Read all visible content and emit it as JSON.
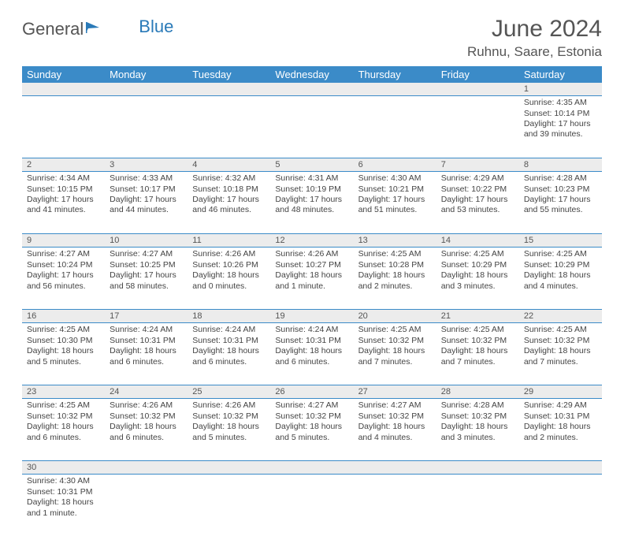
{
  "logo": {
    "general": "General",
    "blue": "Blue"
  },
  "title": "June 2024",
  "location": "Ruhnu, Saare, Estonia",
  "colors": {
    "header_bg": "#3b8bc8",
    "header_fg": "#ffffff",
    "daynum_bg": "#ececec",
    "border": "#3b8bc8",
    "text": "#444444",
    "title": "#555555"
  },
  "day_headers": [
    "Sunday",
    "Monday",
    "Tuesday",
    "Wednesday",
    "Thursday",
    "Friday",
    "Saturday"
  ],
  "weeks": [
    [
      null,
      null,
      null,
      null,
      null,
      null,
      {
        "n": "1",
        "sr": "Sunrise: 4:35 AM",
        "ss": "Sunset: 10:14 PM",
        "dl": "Daylight: 17 hours and 39 minutes."
      }
    ],
    [
      {
        "n": "2",
        "sr": "Sunrise: 4:34 AM",
        "ss": "Sunset: 10:15 PM",
        "dl": "Daylight: 17 hours and 41 minutes."
      },
      {
        "n": "3",
        "sr": "Sunrise: 4:33 AM",
        "ss": "Sunset: 10:17 PM",
        "dl": "Daylight: 17 hours and 44 minutes."
      },
      {
        "n": "4",
        "sr": "Sunrise: 4:32 AM",
        "ss": "Sunset: 10:18 PM",
        "dl": "Daylight: 17 hours and 46 minutes."
      },
      {
        "n": "5",
        "sr": "Sunrise: 4:31 AM",
        "ss": "Sunset: 10:19 PM",
        "dl": "Daylight: 17 hours and 48 minutes."
      },
      {
        "n": "6",
        "sr": "Sunrise: 4:30 AM",
        "ss": "Sunset: 10:21 PM",
        "dl": "Daylight: 17 hours and 51 minutes."
      },
      {
        "n": "7",
        "sr": "Sunrise: 4:29 AM",
        "ss": "Sunset: 10:22 PM",
        "dl": "Daylight: 17 hours and 53 minutes."
      },
      {
        "n": "8",
        "sr": "Sunrise: 4:28 AM",
        "ss": "Sunset: 10:23 PM",
        "dl": "Daylight: 17 hours and 55 minutes."
      }
    ],
    [
      {
        "n": "9",
        "sr": "Sunrise: 4:27 AM",
        "ss": "Sunset: 10:24 PM",
        "dl": "Daylight: 17 hours and 56 minutes."
      },
      {
        "n": "10",
        "sr": "Sunrise: 4:27 AM",
        "ss": "Sunset: 10:25 PM",
        "dl": "Daylight: 17 hours and 58 minutes."
      },
      {
        "n": "11",
        "sr": "Sunrise: 4:26 AM",
        "ss": "Sunset: 10:26 PM",
        "dl": "Daylight: 18 hours and 0 minutes."
      },
      {
        "n": "12",
        "sr": "Sunrise: 4:26 AM",
        "ss": "Sunset: 10:27 PM",
        "dl": "Daylight: 18 hours and 1 minute."
      },
      {
        "n": "13",
        "sr": "Sunrise: 4:25 AM",
        "ss": "Sunset: 10:28 PM",
        "dl": "Daylight: 18 hours and 2 minutes."
      },
      {
        "n": "14",
        "sr": "Sunrise: 4:25 AM",
        "ss": "Sunset: 10:29 PM",
        "dl": "Daylight: 18 hours and 3 minutes."
      },
      {
        "n": "15",
        "sr": "Sunrise: 4:25 AM",
        "ss": "Sunset: 10:29 PM",
        "dl": "Daylight: 18 hours and 4 minutes."
      }
    ],
    [
      {
        "n": "16",
        "sr": "Sunrise: 4:25 AM",
        "ss": "Sunset: 10:30 PM",
        "dl": "Daylight: 18 hours and 5 minutes."
      },
      {
        "n": "17",
        "sr": "Sunrise: 4:24 AM",
        "ss": "Sunset: 10:31 PM",
        "dl": "Daylight: 18 hours and 6 minutes."
      },
      {
        "n": "18",
        "sr": "Sunrise: 4:24 AM",
        "ss": "Sunset: 10:31 PM",
        "dl": "Daylight: 18 hours and 6 minutes."
      },
      {
        "n": "19",
        "sr": "Sunrise: 4:24 AM",
        "ss": "Sunset: 10:31 PM",
        "dl": "Daylight: 18 hours and 6 minutes."
      },
      {
        "n": "20",
        "sr": "Sunrise: 4:25 AM",
        "ss": "Sunset: 10:32 PM",
        "dl": "Daylight: 18 hours and 7 minutes."
      },
      {
        "n": "21",
        "sr": "Sunrise: 4:25 AM",
        "ss": "Sunset: 10:32 PM",
        "dl": "Daylight: 18 hours and 7 minutes."
      },
      {
        "n": "22",
        "sr": "Sunrise: 4:25 AM",
        "ss": "Sunset: 10:32 PM",
        "dl": "Daylight: 18 hours and 7 minutes."
      }
    ],
    [
      {
        "n": "23",
        "sr": "Sunrise: 4:25 AM",
        "ss": "Sunset: 10:32 PM",
        "dl": "Daylight: 18 hours and 6 minutes."
      },
      {
        "n": "24",
        "sr": "Sunrise: 4:26 AM",
        "ss": "Sunset: 10:32 PM",
        "dl": "Daylight: 18 hours and 6 minutes."
      },
      {
        "n": "25",
        "sr": "Sunrise: 4:26 AM",
        "ss": "Sunset: 10:32 PM",
        "dl": "Daylight: 18 hours and 5 minutes."
      },
      {
        "n": "26",
        "sr": "Sunrise: 4:27 AM",
        "ss": "Sunset: 10:32 PM",
        "dl": "Daylight: 18 hours and 5 minutes."
      },
      {
        "n": "27",
        "sr": "Sunrise: 4:27 AM",
        "ss": "Sunset: 10:32 PM",
        "dl": "Daylight: 18 hours and 4 minutes."
      },
      {
        "n": "28",
        "sr": "Sunrise: 4:28 AM",
        "ss": "Sunset: 10:32 PM",
        "dl": "Daylight: 18 hours and 3 minutes."
      },
      {
        "n": "29",
        "sr": "Sunrise: 4:29 AM",
        "ss": "Sunset: 10:31 PM",
        "dl": "Daylight: 18 hours and 2 minutes."
      }
    ],
    [
      {
        "n": "30",
        "sr": "Sunrise: 4:30 AM",
        "ss": "Sunset: 10:31 PM",
        "dl": "Daylight: 18 hours and 1 minute."
      },
      null,
      null,
      null,
      null,
      null,
      null
    ]
  ]
}
